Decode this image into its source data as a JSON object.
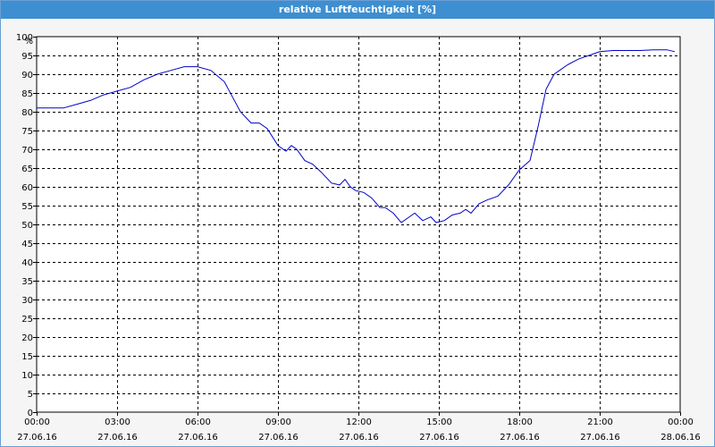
{
  "window": {
    "title": "relative Luftfeuchtigkeit [%]"
  },
  "chart_data": {
    "type": "line",
    "title": "relative Luftfeuchtigkeit [%]",
    "ylabel": "%",
    "xlabel": "",
    "ylim": [
      0,
      100
    ],
    "yticks": [
      0,
      5,
      10,
      15,
      20,
      25,
      30,
      35,
      40,
      45,
      50,
      55,
      60,
      65,
      70,
      75,
      80,
      85,
      90,
      95,
      100
    ],
    "xlim_hours": [
      0,
      24
    ],
    "xticks": [
      {
        "hour": 0,
        "time": "00:00",
        "date": "27.06.16"
      },
      {
        "hour": 3,
        "time": "03:00",
        "date": "27.06.16"
      },
      {
        "hour": 6,
        "time": "06:00",
        "date": "27.06.16"
      },
      {
        "hour": 9,
        "time": "09:00",
        "date": "27.06.16"
      },
      {
        "hour": 12,
        "time": "12:00",
        "date": "27.06.16"
      },
      {
        "hour": 15,
        "time": "15:00",
        "date": "27.06.16"
      },
      {
        "hour": 18,
        "time": "18:00",
        "date": "27.06.16"
      },
      {
        "hour": 21,
        "time": "21:00",
        "date": "27.06.16"
      },
      {
        "hour": 24,
        "time": "00:00",
        "date": "28.06.16"
      }
    ],
    "grid": true,
    "line_color": "#0000cc",
    "series": [
      {
        "x": [
          0,
          0.5,
          1.0,
          1.5,
          2.0,
          2.5,
          3.0,
          3.5,
          4.0,
          4.5,
          5.0,
          5.5,
          6.0,
          6.5,
          7.0,
          7.3,
          7.6,
          8.0,
          8.3,
          8.6,
          9.0,
          9.3,
          9.5,
          9.7,
          10.0,
          10.3,
          10.6,
          11.0,
          11.3,
          11.5,
          11.7,
          11.9,
          12.2,
          12.5,
          12.8,
          13.0,
          13.3,
          13.6,
          13.9,
          14.1,
          14.4,
          14.7,
          14.9,
          15.2,
          15.5,
          15.8,
          16.0,
          16.2,
          16.5,
          16.8,
          17.2,
          17.6,
          18.0,
          18.4,
          18.7,
          19.0,
          19.3,
          19.5,
          19.8,
          20.2,
          20.6,
          21.0,
          21.5,
          22.0,
          22.5,
          23.0,
          23.5,
          23.8
        ],
        "y": [
          81,
          81,
          81,
          82,
          83,
          84.5,
          85.5,
          86.5,
          88.5,
          90,
          91,
          92,
          92,
          91,
          88,
          84,
          80,
          77,
          77,
          75.5,
          71,
          69.5,
          71,
          70,
          67,
          66,
          64,
          61,
          60.5,
          62,
          60,
          59,
          58.5,
          57,
          54.5,
          54.5,
          53,
          50.5,
          52,
          53,
          51,
          52,
          50.5,
          51,
          52.5,
          53,
          54,
          53,
          55.5,
          56.5,
          57.5,
          60.5,
          64.5,
          67,
          76,
          86,
          90,
          91,
          92.5,
          94,
          95,
          96,
          96.3,
          96.3,
          96.3,
          96.5,
          96.5,
          96
        ]
      }
    ]
  }
}
